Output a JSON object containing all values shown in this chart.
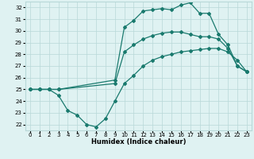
{
  "bg_color": "#dff2f2",
  "grid_color": "#b8d8d8",
  "line_color": "#1a7a6e",
  "marker": "D",
  "markersize": 2,
  "linewidth": 0.9,
  "xlim": [
    -0.5,
    23.5
  ],
  "ylim": [
    21.5,
    32.5
  ],
  "xticks": [
    0,
    1,
    2,
    3,
    4,
    5,
    6,
    7,
    8,
    9,
    10,
    11,
    12,
    13,
    14,
    15,
    16,
    17,
    18,
    19,
    20,
    21,
    22,
    23
  ],
  "yticks": [
    22,
    23,
    24,
    25,
    26,
    27,
    28,
    29,
    30,
    31,
    32
  ],
  "xlabel": "Humidex (Indice chaleur)",
  "xlabel_fontsize": 6,
  "tick_fontsize": 5,
  "curve1_x": [
    0,
    1,
    2,
    3,
    4,
    5,
    6,
    7,
    8,
    9,
    10,
    11,
    12,
    13,
    14,
    15,
    16,
    17,
    18,
    19,
    20,
    21,
    22,
    23
  ],
  "curve1_y": [
    25,
    25,
    25,
    24.5,
    23.2,
    22.8,
    22.0,
    21.8,
    22.5,
    24.0,
    25.5,
    26.2,
    27.0,
    27.5,
    27.8,
    28.0,
    28.2,
    28.3,
    28.4,
    28.5,
    28.5,
    28.2,
    27.5,
    26.5
  ],
  "curve2_x": [
    0,
    1,
    2,
    3,
    9,
    10,
    11,
    12,
    13,
    14,
    15,
    16,
    17,
    18,
    19,
    20,
    21,
    22,
    23
  ],
  "curve2_y": [
    25,
    25,
    25,
    25,
    25.5,
    28.2,
    28.8,
    29.3,
    29.6,
    29.8,
    29.9,
    29.9,
    29.7,
    29.5,
    29.5,
    29.3,
    28.5,
    27.0,
    26.5
  ],
  "curve3_x": [
    0,
    1,
    2,
    3,
    9,
    10,
    11,
    12,
    13,
    14,
    15,
    16,
    17,
    18,
    19,
    20,
    21,
    22,
    23
  ],
  "curve3_y": [
    25,
    25,
    25,
    25,
    25.8,
    30.3,
    30.9,
    31.7,
    31.8,
    31.9,
    31.8,
    32.2,
    32.4,
    31.5,
    31.5,
    29.7,
    28.8,
    27.0,
    26.5
  ]
}
